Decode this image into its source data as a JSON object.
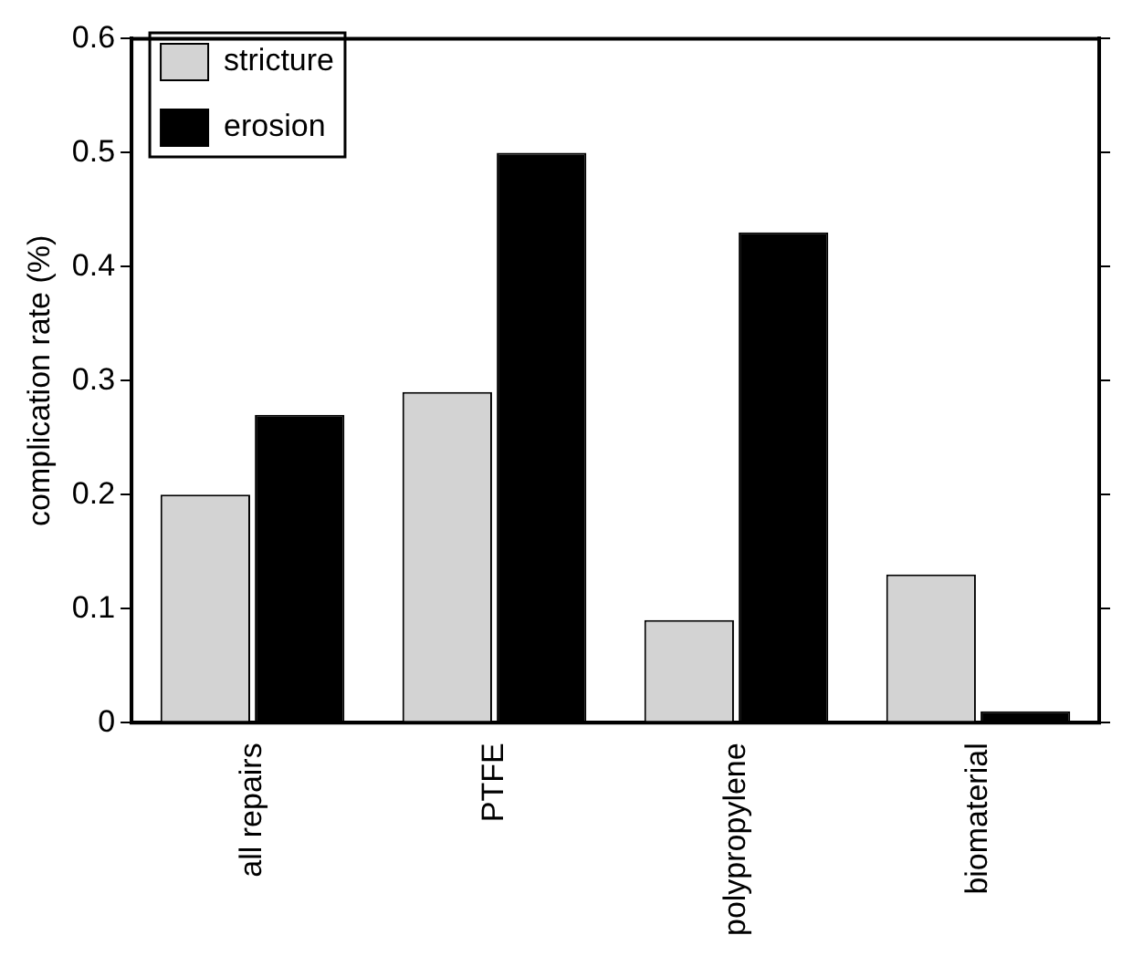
{
  "chart_data": {
    "type": "bar",
    "ylabel": "complication rate (%)",
    "categories": [
      "all repairs",
      "PTFE",
      "polypropylene",
      "biomaterial"
    ],
    "series": [
      {
        "name": "stricture",
        "color": "#d3d3d3",
        "values": [
          0.2,
          0.29,
          0.09,
          0.13
        ]
      },
      {
        "name": "erosion",
        "color": "#000000",
        "values": [
          0.27,
          0.5,
          0.43,
          0.01
        ]
      }
    ],
    "ylim": [
      0,
      0.6
    ],
    "yticks": [
      0,
      0.1,
      0.2,
      0.3,
      0.4,
      0.5,
      0.6
    ],
    "grid": false,
    "legend": "top left"
  }
}
